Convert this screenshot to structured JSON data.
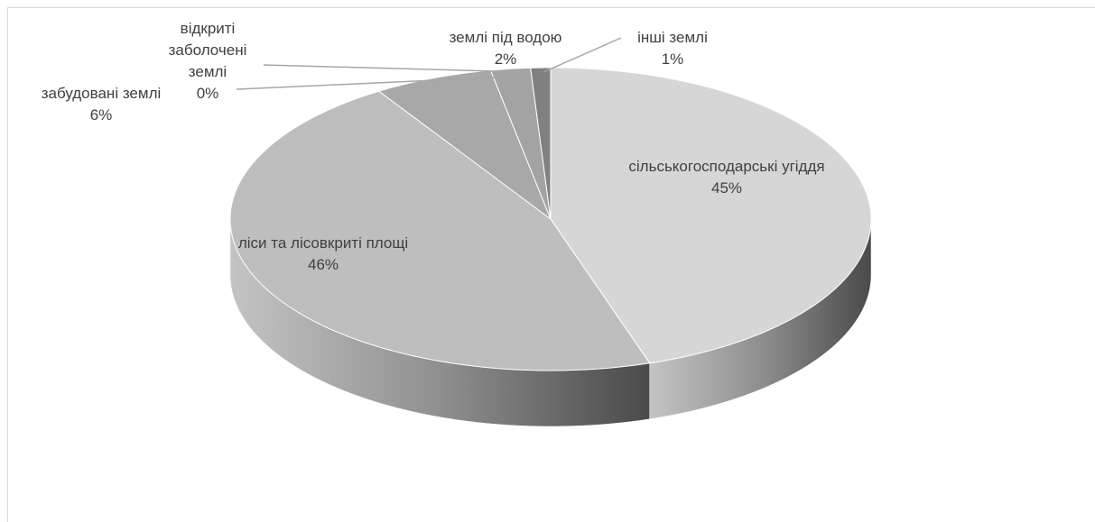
{
  "chart_data": {
    "type": "pie",
    "categories": [
      "сільськогосподарські угіддя",
      "ліси та лісовкриті площі",
      "забудовані землі",
      "відкриті заболочені землі",
      "землі під водою",
      "інші землі"
    ],
    "values": [
      45,
      46,
      6,
      0,
      2,
      1
    ],
    "value_labels": [
      "45%",
      "46%",
      "6%",
      "0%",
      "2%",
      "1%"
    ],
    "colors": [
      "#d6d6d6",
      "#bebebe",
      "#a8a8a8",
      "#9a9a9a",
      "#a3a3a3",
      "#808080"
    ]
  }
}
